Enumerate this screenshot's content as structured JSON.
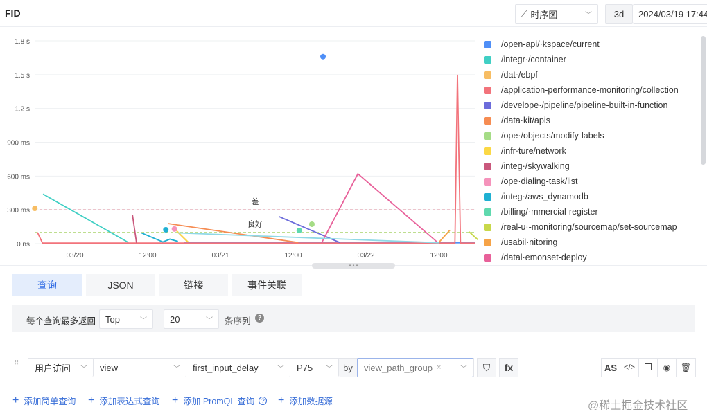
{
  "header": {
    "title": "FID",
    "chart_type": "时序图",
    "range": "3d",
    "time": "2024/03/19 17:44:"
  },
  "chart_data": {
    "type": "line",
    "yticks": [
      "0 ns",
      "300 ms",
      "600 ms",
      "900 ms",
      "1.2 s",
      "1.5 s",
      "1.8 s"
    ],
    "ytick_values": [
      0,
      300,
      600,
      900,
      1200,
      1500,
      1800
    ],
    "ylim": [
      0,
      1800
    ],
    "xticks": [
      {
        "t": "2024-03-20T00:00",
        "label": "03/20"
      },
      {
        "t": "2024-03-20T12:00",
        "label": "12:00"
      },
      {
        "t": "2024-03-21T00:00",
        "label": "03/21"
      },
      {
        "t": "2024-03-21T12:00",
        "label": "12:00"
      },
      {
        "t": "2024-03-22T00:00",
        "label": "03/22"
      },
      {
        "t": "2024-03-22T12:00",
        "label": "12:00"
      }
    ],
    "thresholds": [
      {
        "value": 300,
        "label": "差",
        "color": "#d0647a"
      },
      {
        "value": 100,
        "label": "良好",
        "color": "#a8d46a"
      }
    ],
    "series": [
      {
        "name": "/open-api/·kspace/current",
        "color": "#4f8ff7",
        "points": [
          [
            "2024-03-21T16:55",
            1660
          ]
        ],
        "line": [
          [
            "2024-03-20T18:00",
            8
          ],
          [
            "2024-03-21T12:00",
            10
          ],
          [
            "2024-03-22T12:00",
            8
          ],
          [
            "2024-03-22T18:00",
            8
          ]
        ]
      },
      {
        "name": "/integr·/container",
        "color": "#40cfc4",
        "line": [
          [
            "2024-03-19T18:45",
            440
          ],
          [
            "2024-03-20T08:50",
            10
          ]
        ]
      },
      {
        "name": "/dat·/ebpf",
        "color": "#f7bd63",
        "points": [
          [
            "2024-03-19T17:24",
            313
          ]
        ],
        "line": [
          [
            "2024-03-20T17:00",
            100
          ],
          [
            "2024-03-20T18:30",
            20
          ]
        ]
      },
      {
        "name": "/application-performance-monitoring/collection",
        "color": "#f2737b",
        "line": [
          [
            "2024-03-19T17:50",
            100
          ],
          [
            "2024-03-19T18:40",
            5
          ],
          [
            "2024-03-22T14:40",
            5
          ],
          [
            "2024-03-22T15:05",
            1500
          ],
          [
            "2024-03-22T15:35",
            5
          ],
          [
            "2024-03-22T18:00",
            5
          ]
        ]
      },
      {
        "name": "/develope·/pipeline/pipeline-built-in-function",
        "color": "#6c6cdb",
        "line": [
          [
            "2024-03-21T09:40",
            240
          ],
          [
            "2024-03-21T19:40",
            10
          ]
        ]
      },
      {
        "name": "/data·kit/apis",
        "color": "#f68c52",
        "line": [
          [
            "2024-03-20T15:20",
            178
          ],
          [
            "2024-03-21T12:50",
            10
          ]
        ]
      },
      {
        "name": "/ope·/objects/modify-labels",
        "color": "#a5dc86",
        "points": [
          [
            "2024-03-21T15:05",
            172
          ]
        ]
      },
      {
        "name": "/infr·ture/network",
        "color": "#fbd845",
        "line": [
          [
            "2024-03-20T16:40",
            120
          ],
          [
            "2024-03-20T18:40",
            15
          ]
        ]
      },
      {
        "name": "/integ·/skywalking",
        "color": "#c9587c",
        "line": [
          [
            "2024-03-20T09:30",
            255
          ],
          [
            "2024-03-20T10:10",
            8
          ]
        ]
      },
      {
        "name": "/ope·dialing-task/list",
        "color": "#f593bb",
        "points": [
          [
            "2024-03-20T16:25",
            130
          ]
        ]
      },
      {
        "name": "/integ·/aws_dynamodb",
        "color": "#1fb0d2",
        "points": [
          [
            "2024-03-20T15:00",
            123
          ]
        ],
        "line": [
          [
            "2024-03-20T11:00",
            95
          ],
          [
            "2024-03-20T14:30",
            15
          ],
          [
            "2024-03-20T15:40",
            40
          ],
          [
            "2024-03-20T17:00",
            20
          ]
        ]
      },
      {
        "name": "/billing/·mmercial-register",
        "color": "#5fd9ae",
        "points": [
          [
            "2024-03-21T13:00",
            117
          ]
        ]
      },
      {
        "name": "/real-u·-monitoring/sourcemap/set-sourcemap",
        "color": "#c8d84a",
        "line": [
          [
            "2024-03-22T17:00",
            105
          ],
          [
            "2024-03-22T18:40",
            25
          ]
        ]
      },
      {
        "name": "/usabil·nitoring",
        "color": "#f6a347",
        "line": [
          [
            "2024-03-22T12:00",
            10
          ],
          [
            "2024-03-22T13:50",
            120
          ]
        ]
      },
      {
        "name": "/datal·emonset-deploy",
        "color": "#e8619a",
        "line": [
          [
            "2024-03-21T16:40",
            5
          ],
          [
            "2024-03-21T22:40",
            620
          ],
          [
            "2024-03-22T11:50",
            10
          ]
        ]
      },
      {
        "name": "",
        "color": "#8fd8e6",
        "line": [
          [
            "2024-03-20T17:00",
            95
          ],
          [
            "2024-03-22T12:00",
            8
          ]
        ]
      }
    ]
  },
  "tabs": [
    "查询",
    "JSON",
    "链接",
    "事件关联"
  ],
  "limit": {
    "label": "每个查询最多返回",
    "mode": "Top",
    "count": "20",
    "suffix": "条序列"
  },
  "query": {
    "source": "用户访问",
    "measurement": "view",
    "field": "first_input_delay",
    "agg": "P75",
    "by": "by",
    "group": "view_path_group"
  },
  "actions": {
    "as": "AS"
  },
  "add": [
    "添加简单查询",
    "添加表达式查询",
    "添加 PromQL 查询",
    "添加数据源"
  ],
  "watermark": "@稀土掘金技术社区"
}
